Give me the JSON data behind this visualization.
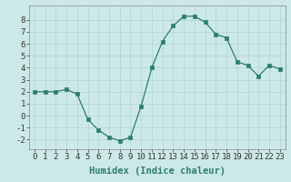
{
  "x": [
    0,
    1,
    2,
    3,
    4,
    5,
    6,
    7,
    8,
    9,
    10,
    11,
    12,
    13,
    14,
    15,
    16,
    17,
    18,
    19,
    20,
    21,
    22,
    23
  ],
  "y": [
    2,
    2,
    2,
    2.2,
    1.8,
    -0.3,
    -1.2,
    -1.8,
    -2.1,
    -1.8,
    0.8,
    4.0,
    6.2,
    7.5,
    8.3,
    8.3,
    7.8,
    6.8,
    6.5,
    4.5,
    4.2,
    3.3,
    4.2,
    3.9
  ],
  "line_color": "#2d7d6d",
  "marker": "s",
  "marker_size": 2.2,
  "bg_color": "#cce9e8",
  "grid_color": "#aed4d2",
  "xlabel": "Humidex (Indice chaleur)",
  "xlabel_fontsize": 7.5,
  "tick_fontsize": 6.5,
  "ylim": [
    -2.8,
    9.2
  ],
  "xlim": [
    -0.5,
    23.5
  ],
  "yticks": [
    -2,
    -1,
    0,
    1,
    2,
    3,
    4,
    5,
    6,
    7,
    8
  ],
  "xticks": [
    0,
    1,
    2,
    3,
    4,
    5,
    6,
    7,
    8,
    9,
    10,
    11,
    12,
    13,
    14,
    15,
    16,
    17,
    18,
    19,
    20,
    21,
    22,
    23
  ]
}
